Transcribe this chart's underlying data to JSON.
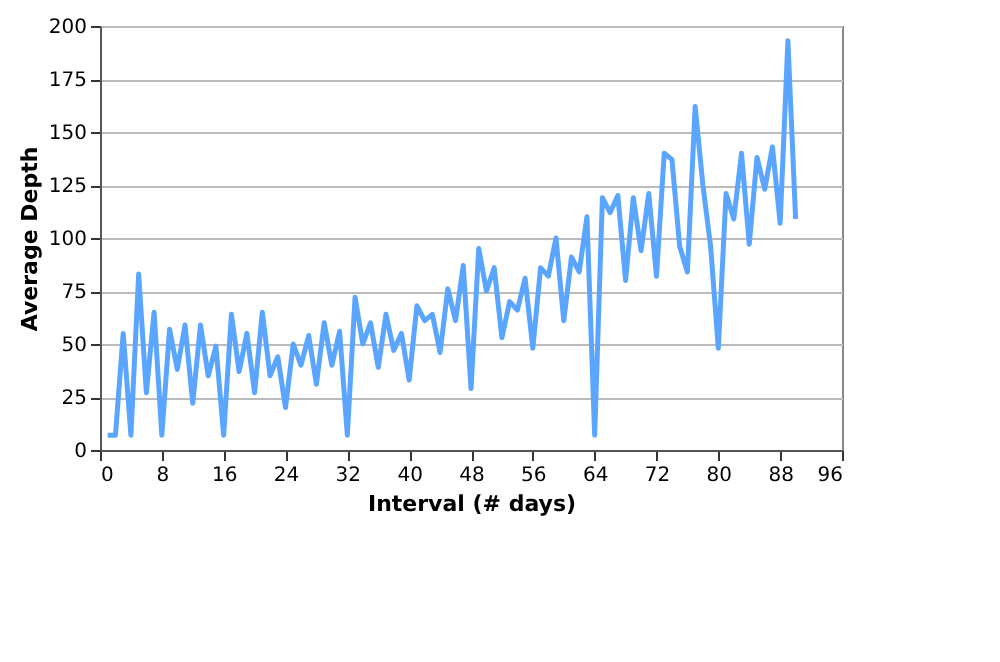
{
  "chart_data": {
    "type": "line",
    "xlabel": "Interval (# days)",
    "ylabel": "Average Depth",
    "x": [
      1,
      2,
      3,
      4,
      5,
      6,
      7,
      8,
      9,
      10,
      11,
      12,
      13,
      14,
      15,
      16,
      17,
      18,
      19,
      20,
      21,
      22,
      23,
      24,
      25,
      26,
      27,
      28,
      29,
      30,
      31,
      32,
      33,
      34,
      35,
      36,
      37,
      38,
      39,
      40,
      41,
      42,
      43,
      44,
      45,
      46,
      47,
      48,
      49,
      50,
      51,
      52,
      53,
      54,
      55,
      56,
      57,
      58,
      59,
      60,
      61,
      62,
      63,
      64,
      65,
      66,
      67,
      68,
      69,
      70,
      71,
      72,
      73,
      74,
      75,
      76,
      77,
      78,
      79,
      80,
      81,
      82,
      83,
      84,
      85,
      86,
      87,
      88,
      89,
      90
    ],
    "series": [
      {
        "color": "#5aa5ff",
        "values": [
          7,
          7,
          55,
          7,
          83,
          27,
          65,
          7,
          57,
          38,
          59,
          22,
          59,
          35,
          49,
          7,
          64,
          37,
          55,
          27,
          65,
          35,
          44,
          20,
          50,
          40,
          54,
          31,
          60,
          40,
          56,
          7,
          72,
          50,
          60,
          39,
          64,
          47,
          55,
          33,
          68,
          61,
          64,
          46,
          76,
          61,
          87,
          29,
          95,
          75,
          86,
          53,
          70,
          66,
          81,
          48,
          86,
          82,
          100,
          61,
          91,
          84,
          110,
          7,
          119,
          112,
          120,
          80,
          119,
          94,
          121,
          82,
          140,
          137,
          96,
          84,
          162,
          125,
          96,
          48,
          121,
          109,
          140,
          97,
          138,
          123,
          143,
          107,
          193,
          109
        ]
      }
    ],
    "xlim": [
      0,
      96
    ],
    "xticks": [
      0,
      8,
      16,
      24,
      32,
      40,
      48,
      56,
      64,
      72,
      80,
      88,
      96
    ],
    "ylim": [
      0,
      200
    ],
    "yticks": [
      0,
      25,
      50,
      75,
      100,
      125,
      150,
      175,
      200
    ],
    "grid": "y",
    "legend": false,
    "marker": "none",
    "line_style": "solid"
  }
}
